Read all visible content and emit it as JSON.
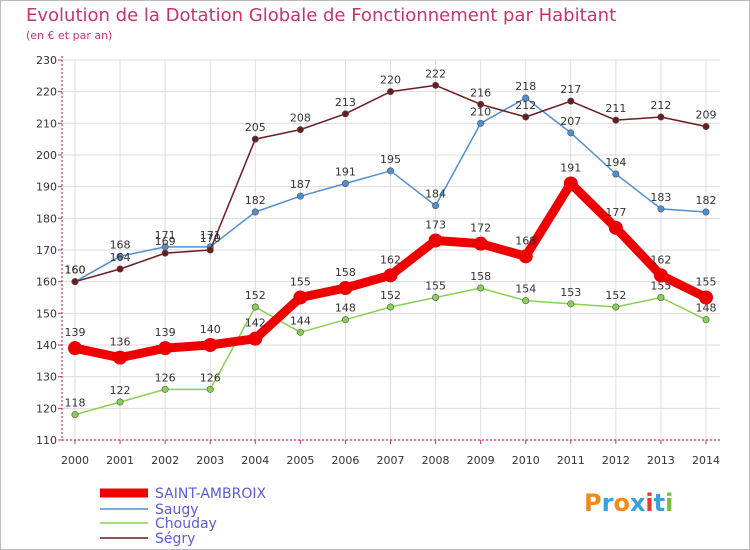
{
  "header": {
    "title": "Evolution de la Dotation Globale de Fonctionnement par Habitant",
    "subtitle": "(en € et par an)"
  },
  "colors": {
    "title": "#c8336e",
    "axis": "#c8336e",
    "legend_text": "#5b5bd6"
  },
  "logo": {
    "text": "Proxiti"
  },
  "chart_data": {
    "type": "line",
    "title": "Evolution de la Dotation Globale de Fonctionnement par Habitant",
    "subtitle": "(en € et par an)",
    "xlabel": "",
    "ylabel": "",
    "x": [
      "2000",
      "2001",
      "2002",
      "2003",
      "2004",
      "2005",
      "2006",
      "2007",
      "2008",
      "2009",
      "2010",
      "2011",
      "2012",
      "2013",
      "2014"
    ],
    "ylim": [
      110,
      230
    ],
    "yticks": [
      110,
      120,
      130,
      140,
      150,
      160,
      170,
      180,
      190,
      200,
      210,
      220,
      230
    ],
    "grid": true,
    "legend_position": "bottom-left",
    "series": [
      {
        "name": "SAINT-AMBROIX",
        "color": "#ee0000",
        "values": [
          139,
          136,
          139,
          140,
          142,
          155,
          158,
          162,
          173,
          172,
          168,
          191,
          177,
          162,
          155
        ]
      },
      {
        "name": "Saugy",
        "color": "#4f8fd1",
        "values": [
          160,
          168,
          171,
          171,
          182,
          187,
          191,
          195,
          184,
          210,
          218,
          207,
          194,
          183,
          182
        ]
      },
      {
        "name": "Chouday",
        "color": "#88d050",
        "values": [
          118,
          122,
          126,
          126,
          152,
          144,
          148,
          152,
          155,
          158,
          154,
          153,
          152,
          155,
          148
        ]
      },
      {
        "name": "Ségry",
        "color": "#6b1c1c",
        "values": [
          160,
          164,
          169,
          170,
          205,
          208,
          213,
          220,
          222,
          216,
          212,
          217,
          211,
          212,
          209
        ]
      }
    ]
  }
}
